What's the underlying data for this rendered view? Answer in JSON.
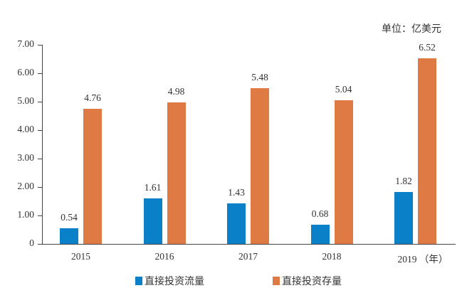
{
  "chart_data": {
    "type": "bar",
    "title": "",
    "unit_label": "单位：亿美元",
    "xlabel": "（年）",
    "ylabel": "",
    "ylim": [
      0,
      7
    ],
    "yticks": [
      "0",
      "1.00",
      "2.00",
      "3.00",
      "4.00",
      "5.00",
      "6.00",
      "7.00"
    ],
    "categories": [
      "2015",
      "2016",
      "2017",
      "2018",
      "2019"
    ],
    "series": [
      {
        "name": "直接投资流量",
        "color": "#0a80c8",
        "values": [
          0.54,
          1.61,
          1.43,
          0.68,
          1.82
        ],
        "labels": [
          "0.54",
          "1.61",
          "1.43",
          "0.68",
          "1.82"
        ]
      },
      {
        "name": "直接投资存量",
        "color": "#e07a45",
        "values": [
          4.76,
          4.98,
          5.48,
          5.04,
          6.52
        ],
        "labels": [
          "4.76",
          "4.98",
          "5.48",
          "5.04",
          "6.52"
        ]
      }
    ],
    "grid": false,
    "legend_position": "bottom"
  }
}
